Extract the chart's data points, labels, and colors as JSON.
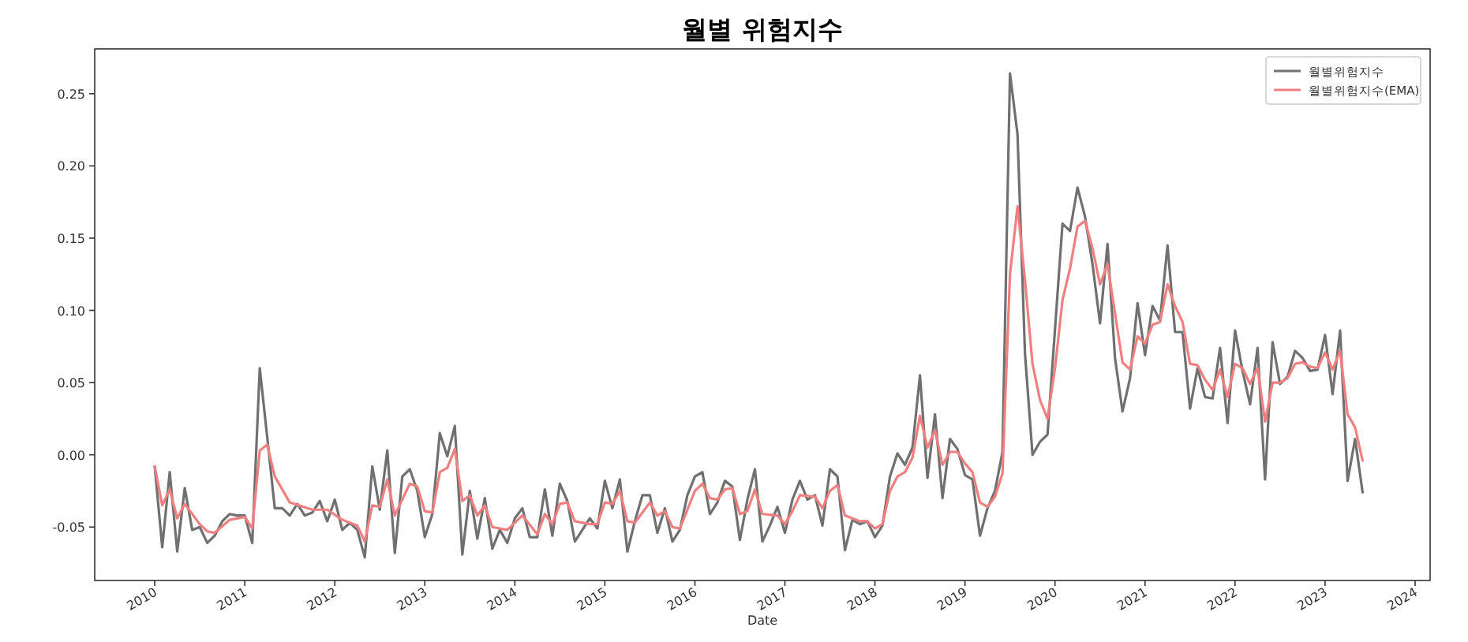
{
  "chart_data": {
    "type": "line",
    "title": "월별 위험지수",
    "xlabel": "Date",
    "legend": "top right",
    "xlim": [
      "2009-05",
      "2024-03"
    ],
    "xticks": [
      "2010",
      "2011",
      "2012",
      "2013",
      "2014",
      "2015",
      "2016",
      "2017",
      "2018",
      "2019",
      "2020",
      "2021",
      "2022",
      "2023",
      "2024"
    ],
    "ylim": [
      -0.087,
      0.281
    ],
    "yticks": [
      -0.05,
      {
        "value": 0,
        "label": "0.00"
      },
      0.05,
      {
        "value": 0.1,
        "label": "0.10"
      },
      0.15,
      {
        "value": 0.2,
        "label": "0.20"
      },
      0.25
    ],
    "series": [
      {
        "name": "월별위험지수",
        "color": "#707070",
        "x": [
          "2010-01",
          "2010-02",
          "2010-03",
          "2010-04",
          "2010-05",
          "2010-06",
          "2010-07",
          "2010-08",
          "2010-09",
          "2010-10",
          "2010-11",
          "2010-12",
          "2011-01",
          "2011-02",
          "2011-03",
          "2011-04",
          "2011-05",
          "2011-06",
          "2011-07",
          "2011-08",
          "2011-09",
          "2011-10",
          "2011-11",
          "2011-12",
          "2012-01",
          "2012-02",
          "2012-03",
          "2012-04",
          "2012-05",
          "2012-06",
          "2012-07",
          "2012-08",
          "2012-09",
          "2012-10",
          "2012-11",
          "2012-12",
          "2013-01",
          "2013-02",
          "2013-03",
          "2013-04",
          "2013-05",
          "2013-06",
          "2013-07",
          "2013-08",
          "2013-09",
          "2013-10",
          "2013-11",
          "2013-12",
          "2014-01",
          "2014-02",
          "2014-03",
          "2014-04",
          "2014-05",
          "2014-06",
          "2014-07",
          "2014-08",
          "2014-09",
          "2014-10",
          "2014-11",
          "2014-12",
          "2015-01",
          "2015-02",
          "2015-03",
          "2015-04",
          "2015-05",
          "2015-06",
          "2015-07",
          "2015-08",
          "2015-09",
          "2015-10",
          "2015-11",
          "2015-12",
          "2016-01",
          "2016-02",
          "2016-03",
          "2016-04",
          "2016-05",
          "2016-06",
          "2016-07",
          "2016-08",
          "2016-09",
          "2016-10",
          "2016-11",
          "2016-12",
          "2017-01",
          "2017-02",
          "2017-03",
          "2017-04",
          "2017-05",
          "2017-06",
          "2017-07",
          "2017-08",
          "2017-09",
          "2017-10",
          "2017-11",
          "2017-12",
          "2018-01",
          "2018-02",
          "2018-03",
          "2018-04",
          "2018-05",
          "2018-06",
          "2018-07",
          "2018-08",
          "2018-09",
          "2018-10",
          "2018-11",
          "2018-12",
          "2019-01",
          "2019-02",
          "2019-03",
          "2019-04",
          "2019-05",
          "2019-06",
          "2019-07",
          "2019-08",
          "2019-09",
          "2019-10",
          "2019-11",
          "2019-12",
          "2020-01",
          "2020-02",
          "2020-03",
          "2020-04",
          "2020-05",
          "2020-06",
          "2020-07",
          "2020-08",
          "2020-09",
          "2020-10",
          "2020-11",
          "2020-12",
          "2021-01",
          "2021-02",
          "2021-03",
          "2021-04",
          "2021-05",
          "2021-06",
          "2021-07",
          "2021-08",
          "2021-09",
          "2021-10",
          "2021-11",
          "2021-12",
          "2022-01",
          "2022-02",
          "2022-03",
          "2022-04",
          "2022-05",
          "2022-06",
          "2022-07",
          "2022-08",
          "2022-09",
          "2022-10",
          "2022-11",
          "2022-12",
          "2023-01",
          "2023-02",
          "2023-03",
          "2023-04",
          "2023-05",
          "2023-06"
        ],
        "values": [
          -0.008,
          -0.064,
          -0.012,
          -0.067,
          -0.023,
          -0.052,
          -0.05,
          -0.061,
          -0.056,
          -0.046,
          -0.041,
          -0.042,
          -0.042,
          -0.061,
          0.06,
          0.012,
          -0.037,
          -0.037,
          -0.042,
          -0.034,
          -0.042,
          -0.04,
          -0.032,
          -0.046,
          -0.031,
          -0.052,
          -0.047,
          -0.052,
          -0.071,
          -0.008,
          -0.038,
          0.003,
          -0.068,
          -0.015,
          -0.01,
          -0.025,
          -0.057,
          -0.041,
          0.015,
          -0.001,
          0.02,
          -0.069,
          -0.025,
          -0.058,
          -0.03,
          -0.065,
          -0.052,
          -0.061,
          -0.044,
          -0.037,
          -0.057,
          -0.057,
          -0.024,
          -0.056,
          -0.02,
          -0.032,
          -0.06,
          -0.052,
          -0.044,
          -0.051,
          -0.018,
          -0.037,
          -0.017,
          -0.067,
          -0.046,
          -0.028,
          -0.028,
          -0.054,
          -0.037,
          -0.06,
          -0.052,
          -0.028,
          -0.015,
          -0.012,
          -0.041,
          -0.033,
          -0.018,
          -0.022,
          -0.059,
          -0.031,
          -0.01,
          -0.06,
          -0.049,
          -0.036,
          -0.054,
          -0.031,
          -0.018,
          -0.031,
          -0.028,
          -0.049,
          -0.01,
          -0.015,
          -0.066,
          -0.045,
          -0.048,
          -0.046,
          -0.057,
          -0.049,
          -0.015,
          0.001,
          -0.007,
          0.005,
          0.055,
          -0.016,
          0.028,
          -0.03,
          0.011,
          0.004,
          -0.014,
          -0.017,
          -0.056,
          -0.037,
          -0.025,
          0.002,
          0.264,
          0.222,
          0.07,
          0.0,
          0.009,
          0.014,
          0.087,
          0.16,
          0.155,
          0.185,
          0.165,
          0.132,
          0.091,
          0.146,
          0.067,
          0.03,
          0.053,
          0.105,
          0.069,
          0.103,
          0.093,
          0.145,
          0.085,
          0.085,
          0.032,
          0.06,
          0.04,
          0.039,
          0.074,
          0.022,
          0.086,
          0.058,
          0.035,
          0.074,
          -0.017,
          0.078,
          0.049,
          0.054,
          0.072,
          0.067,
          0.058,
          0.059,
          0.083,
          0.042,
          0.086,
          -0.018,
          0.011,
          -0.026
        ]
      },
      {
        "name": "월별위험지수(EMA)",
        "color": "#f08080",
        "x": [
          "2010-01",
          "2010-02",
          "2010-03",
          "2010-04",
          "2010-05",
          "2010-07",
          "2010-08",
          "2010-09",
          "2010-11",
          "2011-01",
          "2011-02",
          "2011-03",
          "2011-04",
          "2011-05",
          "2011-07",
          "2011-10",
          "2011-12",
          "2012-02",
          "2012-04",
          "2012-05",
          "2012-06",
          "2012-07",
          "2012-08",
          "2012-09",
          "2012-11",
          "2012-12",
          "2013-01",
          "2013-02",
          "2013-03",
          "2013-04",
          "2013-05",
          "2013-06",
          "2013-07",
          "2013-08",
          "2013-09",
          "2013-10",
          "2013-12",
          "2014-02",
          "2014-04",
          "2014-05",
          "2014-06",
          "2014-07",
          "2014-08",
          "2014-09",
          "2014-11",
          "2014-12",
          "2015-01",
          "2015-02",
          "2015-03",
          "2015-04",
          "2015-05",
          "2015-07",
          "2015-08",
          "2015-09",
          "2015-10",
          "2015-11",
          "2016-01",
          "2016-02",
          "2016-03",
          "2016-04",
          "2016-05",
          "2016-06",
          "2016-07",
          "2016-08",
          "2016-09",
          "2016-10",
          "2016-12",
          "2017-01",
          "2017-02",
          "2017-03",
          "2017-05",
          "2017-06",
          "2017-07",
          "2017-08",
          "2017-09",
          "2017-11",
          "2017-12",
          "2018-01",
          "2018-02",
          "2018-03",
          "2018-04",
          "2018-05",
          "2018-06",
          "2018-07",
          "2018-08",
          "2018-09",
          "2018-10",
          "2018-11",
          "2018-12",
          "2019-01",
          "2019-02",
          "2019-03",
          "2019-04",
          "2019-05",
          "2019-06",
          "2019-07",
          "2019-08",
          "2019-09",
          "2019-10",
          "2019-11",
          "2019-12",
          "2020-01",
          "2020-02",
          "2020-03",
          "2020-04",
          "2020-05",
          "2020-06",
          "2020-07",
          "2020-08",
          "2020-09",
          "2020-10",
          "2020-11",
          "2020-12",
          "2021-01",
          "2021-02",
          "2021-03",
          "2021-04",
          "2021-05",
          "2021-06",
          "2021-07",
          "2021-08",
          "2021-09",
          "2021-10",
          "2021-11",
          "2021-12",
          "2022-01",
          "2022-02",
          "2022-03",
          "2022-04",
          "2022-05",
          "2022-06",
          "2022-07",
          "2022-08",
          "2022-09",
          "2022-10",
          "2022-11",
          "2022-12",
          "2023-01",
          "2023-02",
          "2023-03",
          "2023-04",
          "2023-05",
          "2023-06"
        ],
        "values": [
          -0.008,
          -0.035,
          -0.024,
          -0.044,
          -0.034,
          -0.048,
          -0.053,
          -0.054,
          -0.045,
          -0.043,
          -0.051,
          0.003,
          0.007,
          -0.015,
          -0.033,
          -0.038,
          -0.038,
          -0.045,
          -0.049,
          -0.06,
          -0.035,
          -0.036,
          -0.017,
          -0.042,
          -0.02,
          -0.022,
          -0.039,
          -0.04,
          -0.012,
          -0.009,
          0.004,
          -0.032,
          -0.028,
          -0.042,
          -0.035,
          -0.05,
          -0.052,
          -0.042,
          -0.055,
          -0.041,
          -0.048,
          -0.034,
          -0.033,
          -0.046,
          -0.048,
          -0.048,
          -0.033,
          -0.034,
          -0.025,
          -0.046,
          -0.047,
          -0.033,
          -0.042,
          -0.039,
          -0.05,
          -0.051,
          -0.025,
          -0.02,
          -0.03,
          -0.031,
          -0.024,
          -0.023,
          -0.041,
          -0.039,
          -0.024,
          -0.041,
          -0.042,
          -0.048,
          -0.039,
          -0.028,
          -0.029,
          -0.037,
          -0.025,
          -0.021,
          -0.042,
          -0.046,
          -0.046,
          -0.051,
          -0.048,
          -0.025,
          -0.015,
          -0.012,
          -0.002,
          0.027,
          0.005,
          0.017,
          -0.007,
          0.002,
          0.002,
          -0.006,
          -0.012,
          -0.033,
          -0.036,
          -0.029,
          -0.013,
          0.125,
          0.172,
          0.121,
          0.063,
          0.038,
          0.025,
          0.06,
          0.107,
          0.129,
          0.158,
          0.162,
          0.143,
          0.118,
          0.132,
          0.098,
          0.064,
          0.059,
          0.082,
          0.077,
          0.09,
          0.092,
          0.118,
          0.103,
          0.092,
          0.063,
          0.062,
          0.052,
          0.045,
          0.059,
          0.04,
          0.063,
          0.06,
          0.049,
          0.06,
          0.023,
          0.05,
          0.05,
          0.053,
          0.063,
          0.064,
          0.061,
          0.06,
          0.071,
          0.059,
          0.072,
          0.028,
          0.019,
          -0.004
        ]
      }
    ]
  }
}
